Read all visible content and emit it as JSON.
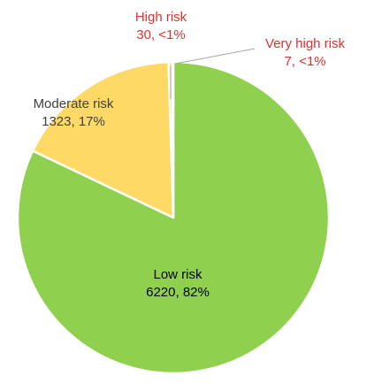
{
  "chart_data": {
    "type": "pie",
    "title": "",
    "start_angle_deg": 0,
    "direction": "clockwise",
    "slices": [
      {
        "name": "Low risk",
        "value": 6220,
        "percent_label": "82%",
        "color": "#8fd14f",
        "label_color": "#000000",
        "label_line1": "Low risk",
        "label_line2": "6220, 82%"
      },
      {
        "name": "Moderate risk",
        "value": 1323,
        "percent_label": "17%",
        "color": "#fed966",
        "label_color": "#404040",
        "label_line1": "Moderate risk",
        "label_line2": "1323, 17%"
      },
      {
        "name": "High risk",
        "value": 30,
        "percent_label": "<1%",
        "color": "#f4e28a",
        "label_color": "#e0312d",
        "label_line1": "High risk",
        "label_line2": "30, <1%"
      },
      {
        "name": "Very high risk",
        "value": 7,
        "percent_label": "<1%",
        "color": "#f4a8a6",
        "label_color": "#e0312d",
        "label_line1": "Very high risk",
        "label_line2": "7, <1%"
      }
    ],
    "separator_color": "#ffffff",
    "leader_line_color": "#a6a6a6"
  }
}
